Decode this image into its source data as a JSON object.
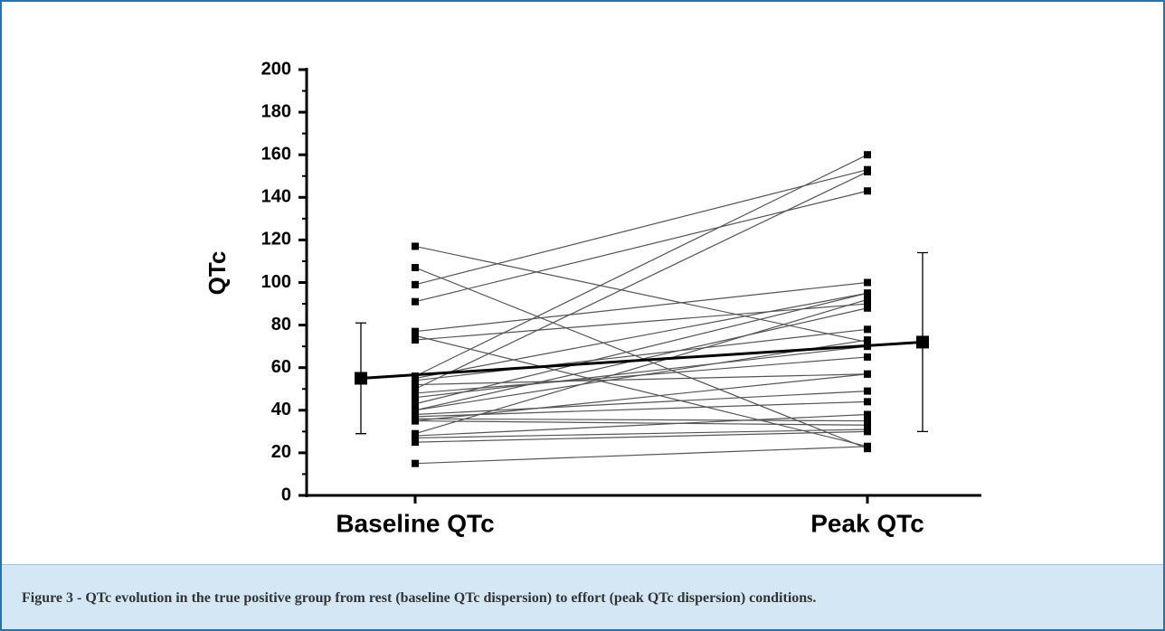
{
  "chart_data": {
    "type": "paired_line",
    "ylabel": "QTc",
    "categories": [
      "Baseline QTc",
      "Peak QTc"
    ],
    "ylim": [
      0,
      200
    ],
    "yticks": [
      0,
      20,
      40,
      60,
      80,
      100,
      120,
      140,
      160,
      180,
      200
    ],
    "line_color": "#555555",
    "marker_color": "#000000",
    "series": [
      {
        "values": [
          117,
          72
        ]
      },
      {
        "values": [
          107,
          22
        ]
      },
      {
        "values": [
          99,
          153
        ]
      },
      {
        "values": [
          91,
          143
        ]
      },
      {
        "values": [
          77,
          100
        ]
      },
      {
        "values": [
          75,
          23
        ]
      },
      {
        "values": [
          73,
          90
        ]
      },
      {
        "values": [
          56,
          160
        ]
      },
      {
        "values": [
          55,
          95
        ]
      },
      {
        "values": [
          54,
          78
        ]
      },
      {
        "values": [
          52,
          57
        ]
      },
      {
        "values": [
          50,
          152
        ]
      },
      {
        "values": [
          48,
          65
        ]
      },
      {
        "values": [
          46,
          70
        ]
      },
      {
        "values": [
          43,
          95
        ]
      },
      {
        "values": [
          40,
          88
        ]
      },
      {
        "values": [
          38,
          49
        ]
      },
      {
        "values": [
          37,
          44
        ]
      },
      {
        "values": [
          36,
          35
        ]
      },
      {
        "values": [
          35,
          33
        ]
      },
      {
        "values": [
          29,
          92
        ]
      },
      {
        "values": [
          28,
          38
        ]
      },
      {
        "values": [
          27,
          31
        ]
      },
      {
        "values": [
          25,
          30
        ]
      },
      {
        "values": [
          15,
          23
        ]
      },
      {
        "values": [
          40,
          73
        ]
      },
      {
        "values": [
          35,
          57
        ]
      }
    ],
    "mean": {
      "values": [
        55,
        72
      ],
      "errors": [
        26,
        42
      ]
    }
  },
  "caption": "Figure 3 - QTc evolution in the true positive group from rest (baseline QTc dispersion) to effort (peak QTc dispersion) conditions."
}
